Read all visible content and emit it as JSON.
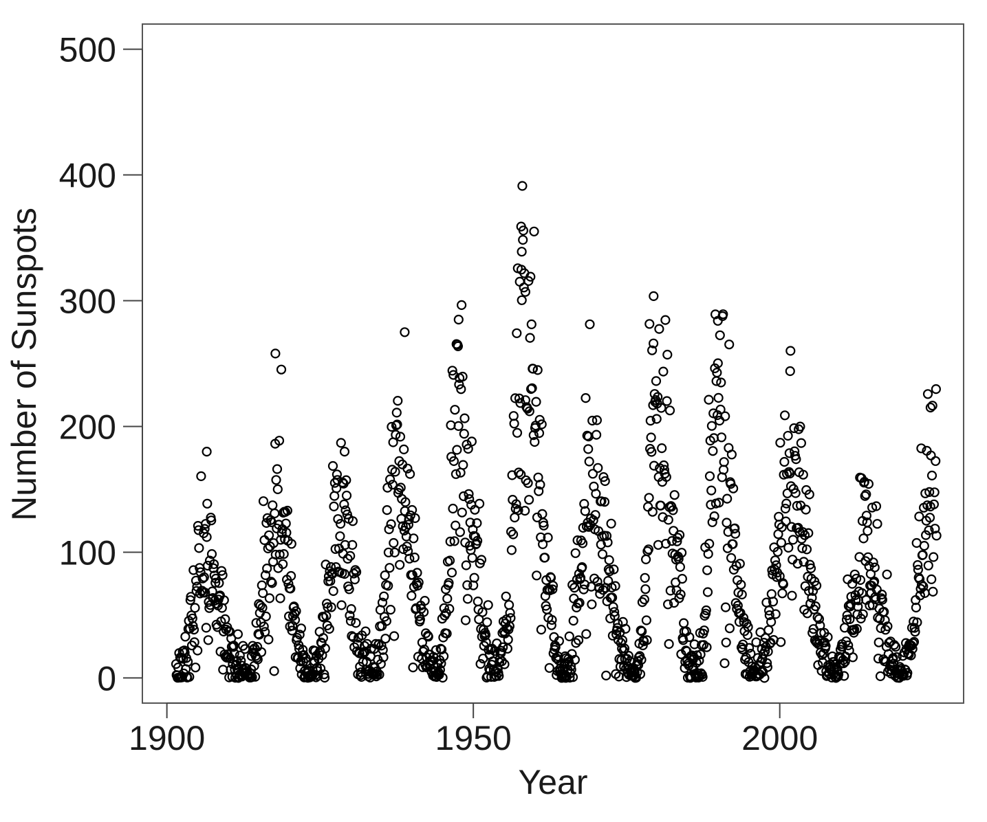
{
  "chart_data": {
    "type": "scatter",
    "title": "",
    "xlabel": "Year",
    "ylabel": "Number of Sunspots",
    "xlim": [
      1896,
      2030
    ],
    "ylim": [
      -20,
      520
    ],
    "x_ticks": [
      1900,
      1950,
      2000
    ],
    "x_tick_labels": [
      "1900",
      "1950",
      "2000"
    ],
    "y_ticks": [
      0,
      100,
      200,
      300,
      400,
      500
    ],
    "y_tick_labels": [
      "0",
      "100",
      "200",
      "300",
      "400",
      "500"
    ],
    "grid": false,
    "legend": "none",
    "marker": "open-circle",
    "marker_color": "#000000",
    "sampling": "monthly",
    "series": [
      {
        "cycles": [
          {
            "start": 1901.7,
            "max": 1906.0,
            "end": 1913.6,
            "peak": 85
          },
          {
            "start": 1913.6,
            "max": 1917.6,
            "end": 1923.6,
            "peak": 130
          },
          {
            "start": 1923.6,
            "max": 1928.4,
            "end": 1933.8,
            "peak": 118
          },
          {
            "start": 1933.8,
            "max": 1937.4,
            "end": 1944.2,
            "peak": 165
          },
          {
            "start": 1944.2,
            "max": 1947.4,
            "end": 1954.3,
            "peak": 200
          },
          {
            "start": 1954.3,
            "max": 1958.2,
            "end": 1964.9,
            "peak": 255
          },
          {
            "start": 1964.9,
            "max": 1968.9,
            "end": 1976.5,
            "peak": 150
          },
          {
            "start": 1976.5,
            "max": 1979.9,
            "end": 1986.8,
            "peak": 215
          },
          {
            "start": 1986.8,
            "max": 1989.6,
            "end": 1996.4,
            "peak": 200
          },
          {
            "start": 1996.4,
            "max": 2001.9,
            "end": 2008.9,
            "peak": 165
          },
          {
            "start": 2008.9,
            "max": 2014.3,
            "end": 2019.9,
            "peak": 100
          },
          {
            "start": 2019.9,
            "max": 2025.0,
            "end": 2031.0,
            "peak": 150
          }
        ],
        "notable_points": [
          {
            "x": 1906.5,
            "y": 180
          },
          {
            "x": 1917.7,
            "y": 258
          },
          {
            "x": 1929.0,
            "y": 180
          },
          {
            "x": 1938.8,
            "y": 275
          },
          {
            "x": 1947.6,
            "y": 285
          },
          {
            "x": 1957.8,
            "y": 359
          },
          {
            "x": 1957.9,
            "y": 339
          },
          {
            "x": 1958.5,
            "y": 307
          },
          {
            "x": 1968.8,
            "y": 192
          },
          {
            "x": 1979.4,
            "y": 266
          },
          {
            "x": 1989.9,
            "y": 284
          },
          {
            "x": 2001.7,
            "y": 244
          },
          {
            "x": 2014.1,
            "y": 146
          },
          {
            "x": 2024.6,
            "y": 215
          }
        ]
      }
    ]
  }
}
